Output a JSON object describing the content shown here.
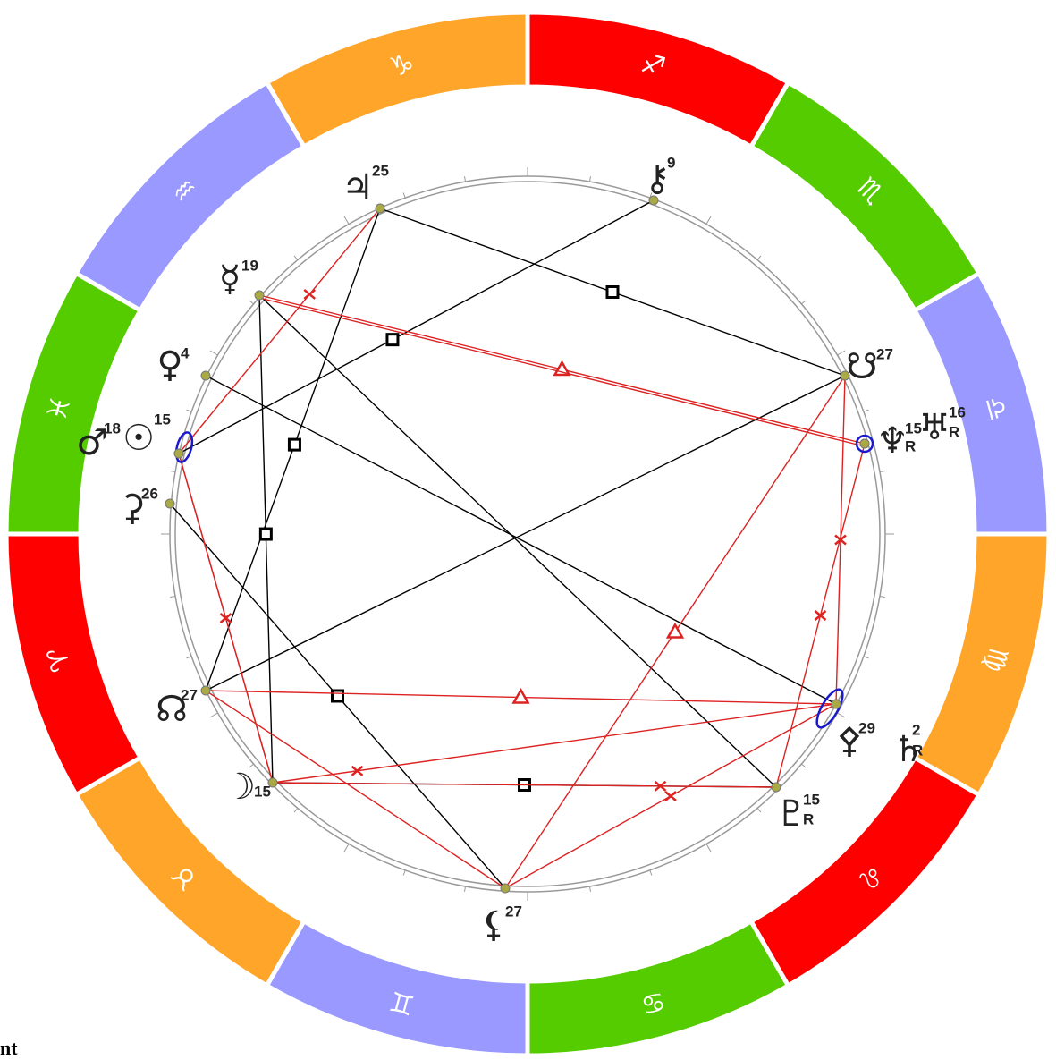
{
  "zodiac": [
    {
      "glyph": "♈"
    },
    {
      "glyph": "♉"
    },
    {
      "glyph": "♊"
    },
    {
      "glyph": "♋"
    },
    {
      "glyph": "♌"
    },
    {
      "glyph": "♍"
    },
    {
      "glyph": "♎"
    },
    {
      "glyph": "♏"
    },
    {
      "glyph": "♐"
    },
    {
      "glyph": "♑"
    },
    {
      "glyph": "♒"
    },
    {
      "glyph": "♓"
    }
  ],
  "planets": [
    {
      "glyph": "♃",
      "degree": 25
    },
    {
      "glyph": "⚷",
      "degree": 9
    },
    {
      "glyph": "☿",
      "degree": 19
    },
    {
      "glyph": "♀",
      "degree": 4
    },
    {
      "glyph": "♂",
      "degree": 18
    },
    {
      "glyph": "☉",
      "degree": 15
    },
    {
      "glyph": "⚳",
      "degree": 26
    },
    {
      "glyph": "☊",
      "degree": 27
    },
    {
      "glyph": "☽",
      "degree": 15
    },
    {
      "glyph": "⚸",
      "degree": 27
    },
    {
      "glyph": "♇",
      "degree": 15,
      "retrograde": "R"
    },
    {
      "glyph": "⚴",
      "degree": 29
    },
    {
      "glyph": "♄",
      "degree": 2,
      "retrograde": "R"
    },
    {
      "glyph": "♆",
      "degree": 15,
      "retrograde": "R"
    },
    {
      "glyph": "♅",
      "degree": 16,
      "retrograde": "R"
    },
    {
      "glyph": "☋",
      "degree": 27
    }
  ],
  "footer": "nt"
}
